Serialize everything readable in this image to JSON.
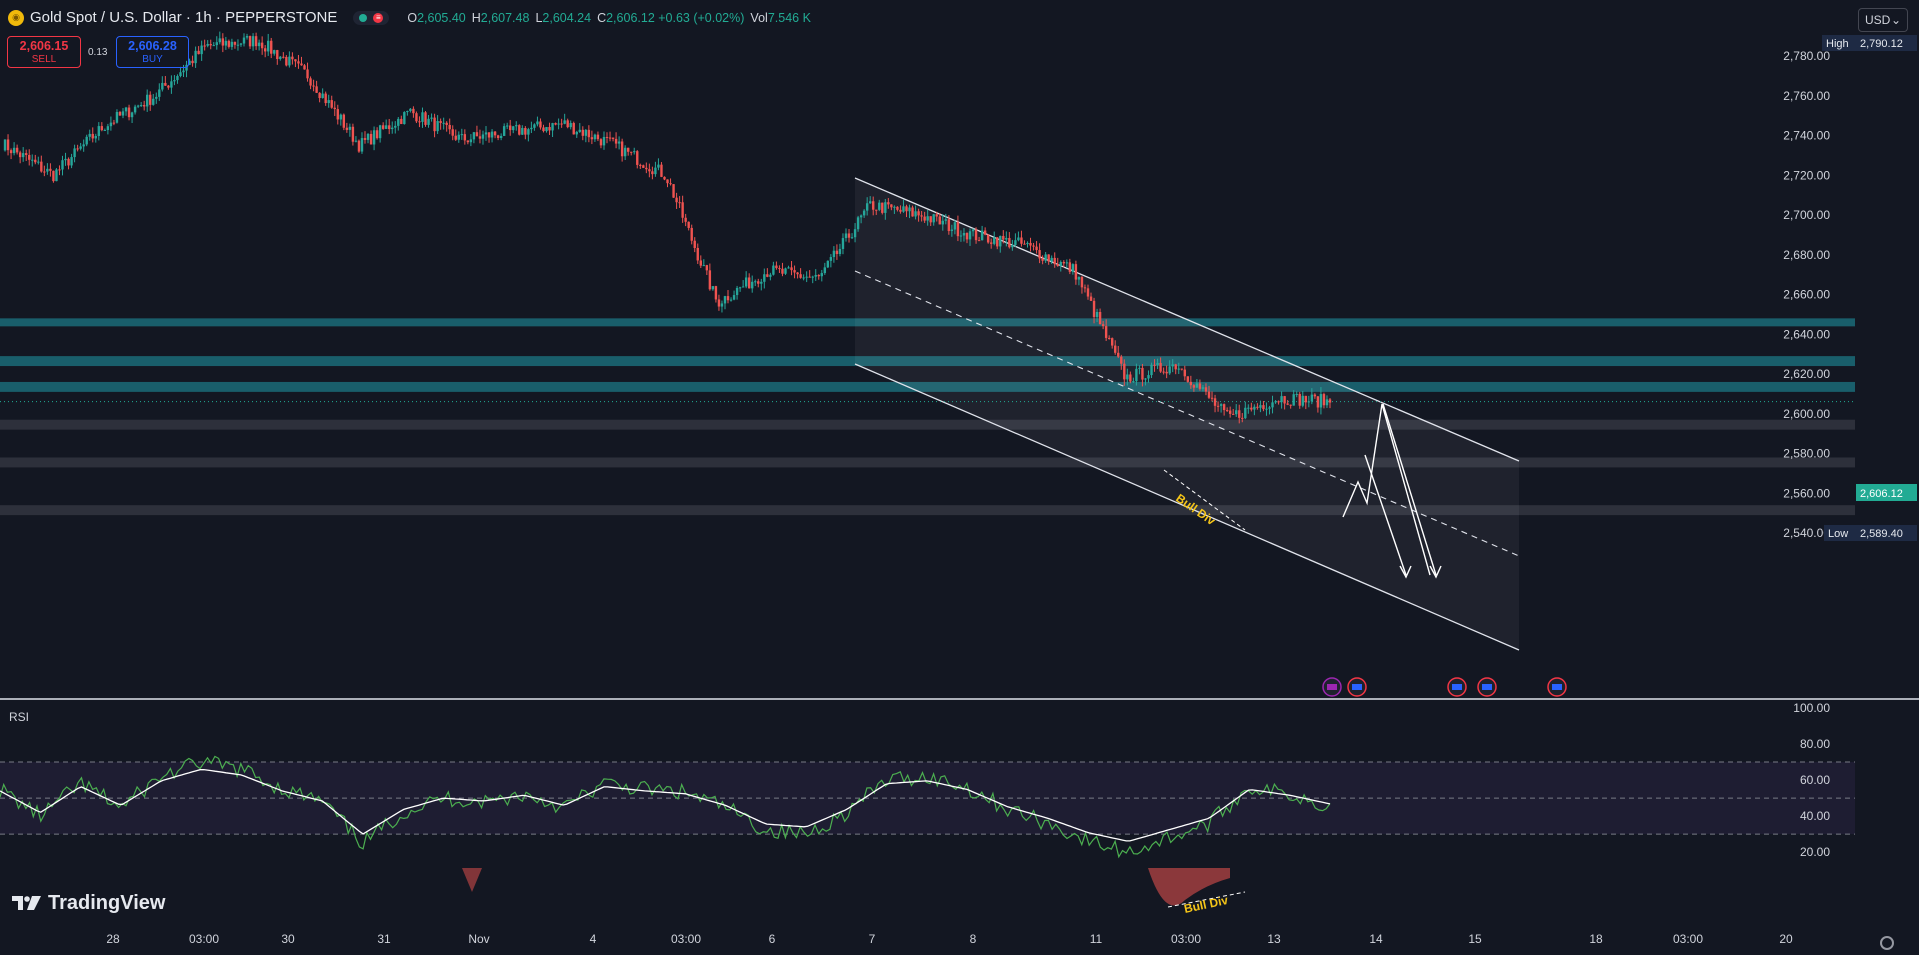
{
  "header": {
    "title": "Gold Spot / U.S. Dollar · 1h · PEPPERSTONE",
    "ohlc": [
      {
        "key": "O",
        "value": "2,605.40"
      },
      {
        "key": "H",
        "value": "2,607.48"
      },
      {
        "key": "L",
        "value": "2,604.24"
      },
      {
        "key": "C",
        "value": "2,606.12 +0.63 (+0.02%)"
      },
      {
        "key": "Vol",
        "value": "7.546 K"
      }
    ]
  },
  "trade": {
    "sell_price": "2,606.15",
    "sell_label": "SELL",
    "buy_price": "2,606.28",
    "buy_label": "BUY",
    "spread": "0.13"
  },
  "currency": "USD",
  "price_axis": {
    "labels": [
      "2,780.00",
      "2,760.00",
      "2,740.00",
      "2,720.00",
      "2,700.00",
      "2,680.00",
      "2,660.00",
      "2,640.00",
      "2,620.00",
      "2,600.00",
      "2,580.00",
      "2,560.00",
      "2,540.00"
    ],
    "high_tag": "High",
    "high_value": "2,790.12",
    "low_tag": "Low",
    "low_value": "2,589.40",
    "last_value": "2,606.12"
  },
  "time_axis": [
    "28",
    "03:00",
    "30",
    "31",
    "Nov",
    "4",
    "03:00",
    "6",
    "7",
    "8",
    "11",
    "03:00",
    "13",
    "14",
    "15",
    "18",
    "03:00",
    "20"
  ],
  "rsi": {
    "label": "RSI",
    "axis_labels": [
      "100.00",
      "80.00",
      "60.00",
      "40.00",
      "20.00"
    ]
  },
  "annotations": {
    "bull_div_price": "Bull Div",
    "bull_div_rsi": "Bull Div"
  },
  "brand": "TradingView",
  "colors": {
    "background": "#131722",
    "up": "#26a69a",
    "down": "#ef5350",
    "zone_teal": "#1b6b78",
    "zone_gray": "#434651",
    "rsi_line": "#4caf50",
    "rsi_ma": "#ffffff",
    "accent_yellow": "#f5c518"
  },
  "chart_data": {
    "type": "candlestick",
    "symbol": "XAUUSD",
    "timeframe": "1h",
    "y_range": [
      2530,
      2800
    ],
    "key_closes": [
      2736,
      2720,
      2745,
      2760,
      2785,
      2788,
      2770,
      2735,
      2752,
      2738,
      2742,
      2746,
      2735,
      2720,
      2656,
      2672,
      2668,
      2705,
      2700,
      2690,
      2685,
      2672,
      2618,
      2625,
      2598,
      2608,
      2606.12
    ],
    "support_resistance_zones": [
      [
        2644,
        2648
      ],
      [
        2624,
        2629
      ],
      [
        2611,
        2616
      ],
      [
        2592,
        2597
      ],
      [
        2573,
        2578
      ],
      [
        2549,
        2554
      ]
    ],
    "rsi_range": [
      0,
      100
    ],
    "rsi_levels": [
      70,
      50,
      30
    ]
  }
}
